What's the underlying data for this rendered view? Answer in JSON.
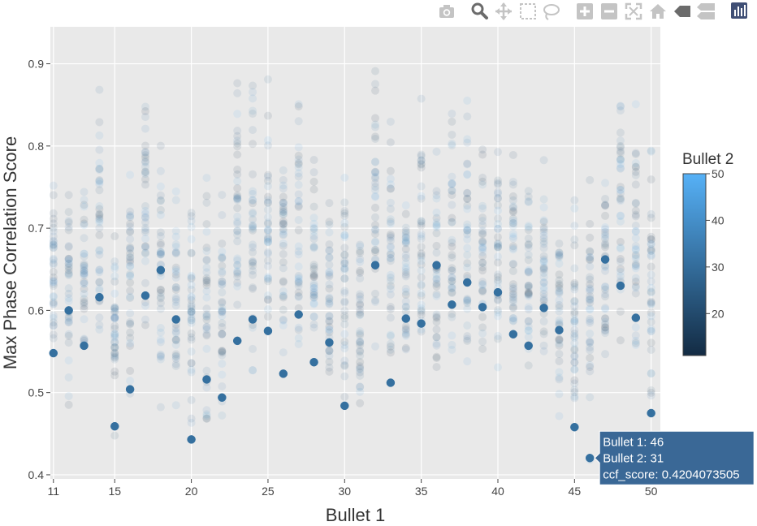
{
  "toolbar": {
    "buttons": [
      {
        "name": "camera-icon",
        "title": "Download plot as a png"
      },
      {
        "name": "zoom-icon",
        "title": "Zoom"
      },
      {
        "name": "pan-icon",
        "title": "Pan"
      },
      {
        "name": "box-select-icon",
        "title": "Box Select"
      },
      {
        "name": "lasso-select-icon",
        "title": "Lasso Select"
      },
      {
        "name": "zoom-in-icon",
        "title": "Zoom in"
      },
      {
        "name": "zoom-out-icon",
        "title": "Zoom out"
      },
      {
        "name": "autoscale-icon",
        "title": "Autoscale"
      },
      {
        "name": "reset-axes-icon",
        "title": "Reset axes"
      },
      {
        "name": "hover-closest-icon",
        "title": "Show closest data on hover"
      },
      {
        "name": "hover-compare-icon",
        "title": "Compare data on hover"
      },
      {
        "name": "plotly-logo-icon",
        "title": "Produced with Plotly"
      }
    ]
  },
  "chart_data": {
    "type": "scatter",
    "xlabel": "Bullet 1",
    "ylabel": "Max Phase Correlation Score",
    "xlim": [
      10.8,
      50.6
    ],
    "ylim": [
      0.395,
      0.945
    ],
    "xticks": [
      11,
      15,
      20,
      25,
      30,
      35,
      40,
      45,
      50
    ],
    "yticks": [
      0.4,
      0.5,
      0.6,
      0.7,
      0.8,
      0.9
    ],
    "grid": true,
    "plot_background": "#e9e9e9",
    "colorbar": {
      "title": "Bullet 2",
      "range": [
        11,
        50
      ],
      "ticks": [
        20,
        30,
        40,
        50
      ],
      "colorscale": [
        "#132b43",
        "#56b1f7"
      ]
    },
    "highlighted_points": [
      {
        "x": 11,
        "y": 0.548
      },
      {
        "x": 12,
        "y": 0.6
      },
      {
        "x": 13,
        "y": 0.557
      },
      {
        "x": 14,
        "y": 0.616
      },
      {
        "x": 15,
        "y": 0.459
      },
      {
        "x": 16,
        "y": 0.504
      },
      {
        "x": 17,
        "y": 0.618
      },
      {
        "x": 18,
        "y": 0.649
      },
      {
        "x": 19,
        "y": 0.589
      },
      {
        "x": 20,
        "y": 0.443
      },
      {
        "x": 21,
        "y": 0.516
      },
      {
        "x": 22,
        "y": 0.494
      },
      {
        "x": 23,
        "y": 0.563
      },
      {
        "x": 24,
        "y": 0.589
      },
      {
        "x": 25,
        "y": 0.575
      },
      {
        "x": 26,
        "y": 0.523
      },
      {
        "x": 27,
        "y": 0.595
      },
      {
        "x": 28,
        "y": 0.537
      },
      {
        "x": 29,
        "y": 0.561
      },
      {
        "x": 30,
        "y": 0.484
      },
      {
        "x": 32,
        "y": 0.655
      },
      {
        "x": 33,
        "y": 0.512
      },
      {
        "x": 34,
        "y": 0.59
      },
      {
        "x": 35,
        "y": 0.584
      },
      {
        "x": 36,
        "y": 0.655
      },
      {
        "x": 37,
        "y": 0.607
      },
      {
        "x": 38,
        "y": 0.634
      },
      {
        "x": 39,
        "y": 0.604
      },
      {
        "x": 40,
        "y": 0.622
      },
      {
        "x": 41,
        "y": 0.571
      },
      {
        "x": 42,
        "y": 0.557
      },
      {
        "x": 43,
        "y": 0.603
      },
      {
        "x": 44,
        "y": 0.576
      },
      {
        "x": 45,
        "y": 0.458
      },
      {
        "x": 46,
        "y": 0.4204073505
      },
      {
        "x": 47,
        "y": 0.662
      },
      {
        "x": 48,
        "y": 0.63
      },
      {
        "x": 49,
        "y": 0.591
      },
      {
        "x": 50,
        "y": 0.475
      }
    ],
    "highlight_bullet2": 31,
    "background_points": {
      "x_range": [
        11,
        50
      ],
      "y_center_by_x": [
        0.64,
        0.62,
        0.65,
        0.7,
        0.58,
        0.65,
        0.72,
        0.65,
        0.63,
        0.6,
        0.61,
        0.6,
        0.72,
        0.7,
        0.7,
        0.66,
        0.68,
        0.65,
        0.61,
        0.62,
        0.59,
        0.72,
        0.66,
        0.64,
        0.68,
        0.66,
        0.68,
        0.7,
        0.69,
        0.67,
        0.66,
        0.64,
        0.65,
        0.6,
        0.59,
        0.6,
        0.66,
        0.73,
        0.68,
        0.64
      ],
      "y_spread_by_x": [
        0.1,
        0.12,
        0.09,
        0.14,
        0.11,
        0.12,
        0.15,
        0.13,
        0.12,
        0.12,
        0.13,
        0.12,
        0.14,
        0.16,
        0.14,
        0.12,
        0.15,
        0.12,
        0.12,
        0.14,
        0.11,
        0.16,
        0.13,
        0.14,
        0.14,
        0.12,
        0.14,
        0.17,
        0.16,
        0.13,
        0.12,
        0.11,
        0.12,
        0.11,
        0.12,
        0.14,
        0.12,
        0.15,
        0.14,
        0.13
      ]
    },
    "tooltip": {
      "line1": "Bullet 1: 46",
      "line2": "Bullet 2: 31",
      "line3": "ccf_score: 0.4204073505",
      "x": 46,
      "y": 0.4204073505,
      "color": "#3a6896"
    }
  }
}
